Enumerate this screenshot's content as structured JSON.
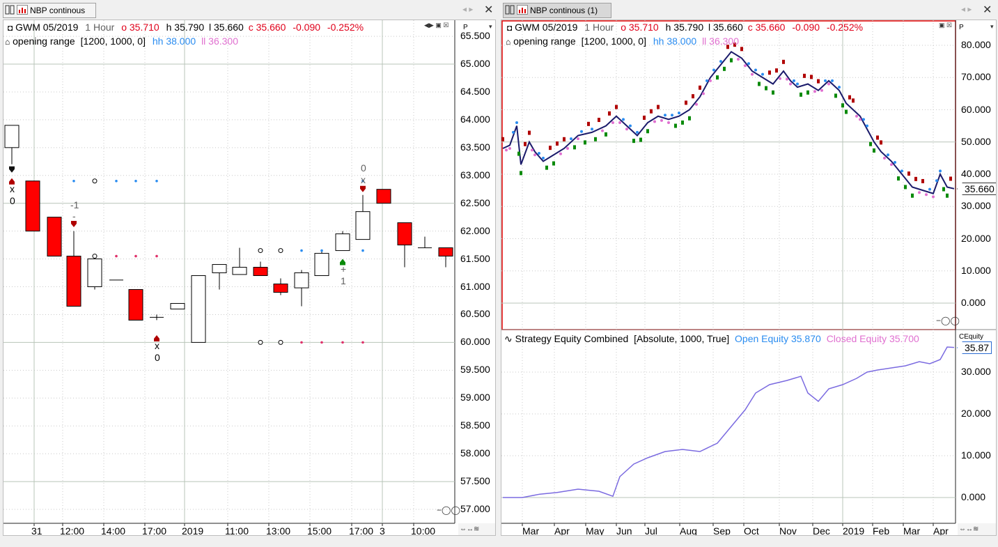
{
  "left_window": {
    "tab_title": "NBP continous",
    "header": {
      "symbol": "GWM 05/2019",
      "interval": "1 Hour",
      "open": "o 35.710",
      "high": "h 35.790",
      "low": "l 35.660",
      "close": "c 35.660",
      "change": "-0.090",
      "change_pct": "-0.252%"
    },
    "indicator": {
      "name": "opening range",
      "params": "[1200, 1000, 0]",
      "hh": "hh 38.000",
      "ll": "ll 36.300"
    },
    "price_axis_label": "P",
    "y_ticks": [
      "65.500",
      "65.000",
      "64.500",
      "64.000",
      "63.500",
      "63.000",
      "62.500",
      "62.000",
      "61.500",
      "61.000",
      "60.500",
      "60.000",
      "59.500",
      "59.000",
      "58.500",
      "58.000",
      "57.500",
      "57.000"
    ],
    "x_ticks": [
      "31",
      "12:00",
      "14:00",
      "17:00",
      "2019",
      "11:00",
      "13:00",
      "15:00",
      "17:00",
      "3",
      "10:00"
    ],
    "trade_marks": {
      "t1_x": "x",
      "t1_n": "0",
      "t2_n": "-1",
      "t2_dash": "-",
      "t3_x": "x",
      "t3_n": "0",
      "t4_plus": "+",
      "t4_n": "1",
      "t5_n": "0",
      "t5_x": "x"
    }
  },
  "right_window": {
    "tab_title": "NBP continous (1)",
    "header": {
      "symbol": "GWM 05/2019",
      "interval": "1 Hour",
      "open": "o 35.710",
      "high": "h 35.790",
      "low": "l 35.660",
      "close": "c 35.660",
      "change": "-0.090",
      "change_pct": "-0.252%"
    },
    "indicator": {
      "name": "opening range",
      "params": "[1200, 1000, 0]",
      "hh": "hh 38.000",
      "ll": "ll 36.300"
    },
    "price_axis_label": "P",
    "last_price": "35.660",
    "y_ticks": [
      "80.000",
      "70.000",
      "60.000",
      "50.000",
      "40.000",
      "30.000",
      "20.000",
      "10.000",
      "0.000"
    ],
    "equity": {
      "name": "Strategy Equity Combined",
      "params": "[Absolute, 1000, True]",
      "open_equity": "Open Equity 35.870",
      "closed_equity": "Closed Equity 35.700",
      "axis_label": "CEquity",
      "last_value": "35.87",
      "y_ticks": [
        "30.000",
        "20.000",
        "10.000",
        "0.000"
      ]
    },
    "x_ticks": [
      "Mar",
      "Apr",
      "May",
      "Jun",
      "Jul",
      "Aug",
      "Sep",
      "Oct",
      "Nov",
      "Dec",
      "2019",
      "Feb",
      "Mar",
      "Apr"
    ]
  },
  "colors": {
    "bear_candle": "#ff0000",
    "bull_candle": "#ffffff",
    "hh_dots": "#2a8cf0",
    "ll_dots": "#e0306a",
    "entry_arrow_red": "#b00000",
    "entry_arrow_green": "#0a8a0a",
    "equity_line": "#7a6ae0",
    "frame_red": "#e00000"
  }
}
